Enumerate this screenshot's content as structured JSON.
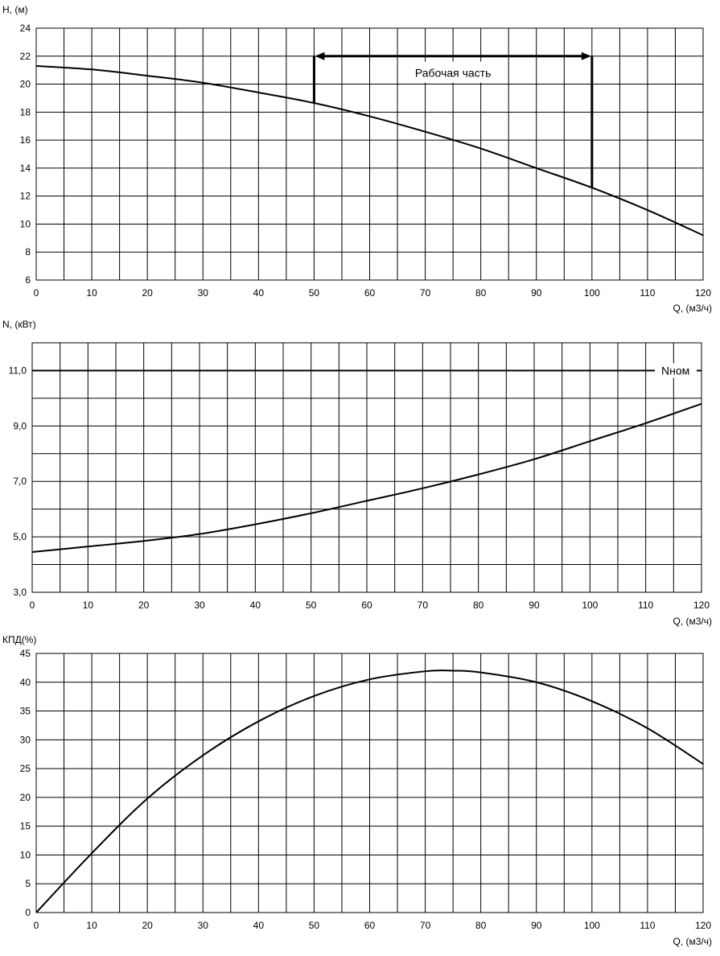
{
  "chart_data": [
    {
      "id": "head",
      "type": "line",
      "ylabel": "H, (м)",
      "xlabel": "Q, (м3/ч)",
      "xlim": [
        0,
        120
      ],
      "ylim": [
        6,
        24
      ],
      "xticks": [
        0,
        10,
        20,
        30,
        40,
        50,
        60,
        70,
        80,
        90,
        100,
        110,
        120
      ],
      "yticks": [
        6,
        8,
        10,
        12,
        14,
        16,
        18,
        20,
        22,
        24
      ],
      "x_grid_step": 5,
      "y_grid_step": 2,
      "series": [
        {
          "x": [
            0,
            10,
            20,
            30,
            40,
            50,
            60,
            70,
            80,
            90,
            100,
            110,
            120
          ],
          "y": [
            21.3,
            21.05,
            20.6,
            20.1,
            19.4,
            18.65,
            17.7,
            16.6,
            15.4,
            14.0,
            12.6,
            11.0,
            9.2
          ]
        }
      ],
      "annotation": {
        "text": "Рабочая часть",
        "x_range": [
          50,
          100
        ],
        "y": 22,
        "x_mid_label": 75,
        "y_label": 20.8
      }
    },
    {
      "id": "power",
      "type": "line",
      "ylabel": "N, (кВт)",
      "xlabel": "Q, (м3/ч)",
      "xlim": [
        0,
        120
      ],
      "ylim": [
        3,
        12
      ],
      "xticks": [
        0,
        10,
        20,
        30,
        40,
        50,
        60,
        70,
        80,
        90,
        100,
        110,
        120
      ],
      "yticks": [
        3,
        5,
        7,
        9,
        11
      ],
      "ytick_labels": [
        "3,0",
        "5,0",
        "7,0",
        "9,0",
        "11,0"
      ],
      "x_grid_step": 5,
      "y_grid_step": 1,
      "series": [
        {
          "x": [
            0,
            10,
            20,
            30,
            40,
            50,
            60,
            70,
            80,
            90,
            100,
            110,
            120
          ],
          "y": [
            4.45,
            4.65,
            4.85,
            5.1,
            5.45,
            5.85,
            6.3,
            6.75,
            7.25,
            7.8,
            8.45,
            9.1,
            9.8
          ]
        }
      ],
      "reference_line": {
        "label": "Nном",
        "y": 11.0
      }
    },
    {
      "id": "efficiency",
      "type": "line",
      "ylabel": "КПД(%)",
      "xlabel": "Q, (м3/ч)",
      "xlim": [
        0,
        120
      ],
      "ylim": [
        0,
        45
      ],
      "xticks": [
        0,
        10,
        20,
        30,
        40,
        50,
        60,
        70,
        80,
        90,
        100,
        110,
        120
      ],
      "yticks": [
        0,
        5,
        10,
        15,
        20,
        25,
        30,
        35,
        40,
        45
      ],
      "x_grid_step": 5,
      "y_grid_step": 5,
      "series": [
        {
          "x": [
            0,
            10,
            20,
            30,
            40,
            50,
            60,
            70,
            75,
            80,
            90,
            100,
            110,
            120
          ],
          "y": [
            0,
            10.3,
            19.8,
            27.3,
            33.2,
            37.6,
            40.5,
            41.9,
            42.0,
            41.7,
            40.0,
            36.7,
            32.0,
            25.8
          ]
        }
      ]
    }
  ]
}
